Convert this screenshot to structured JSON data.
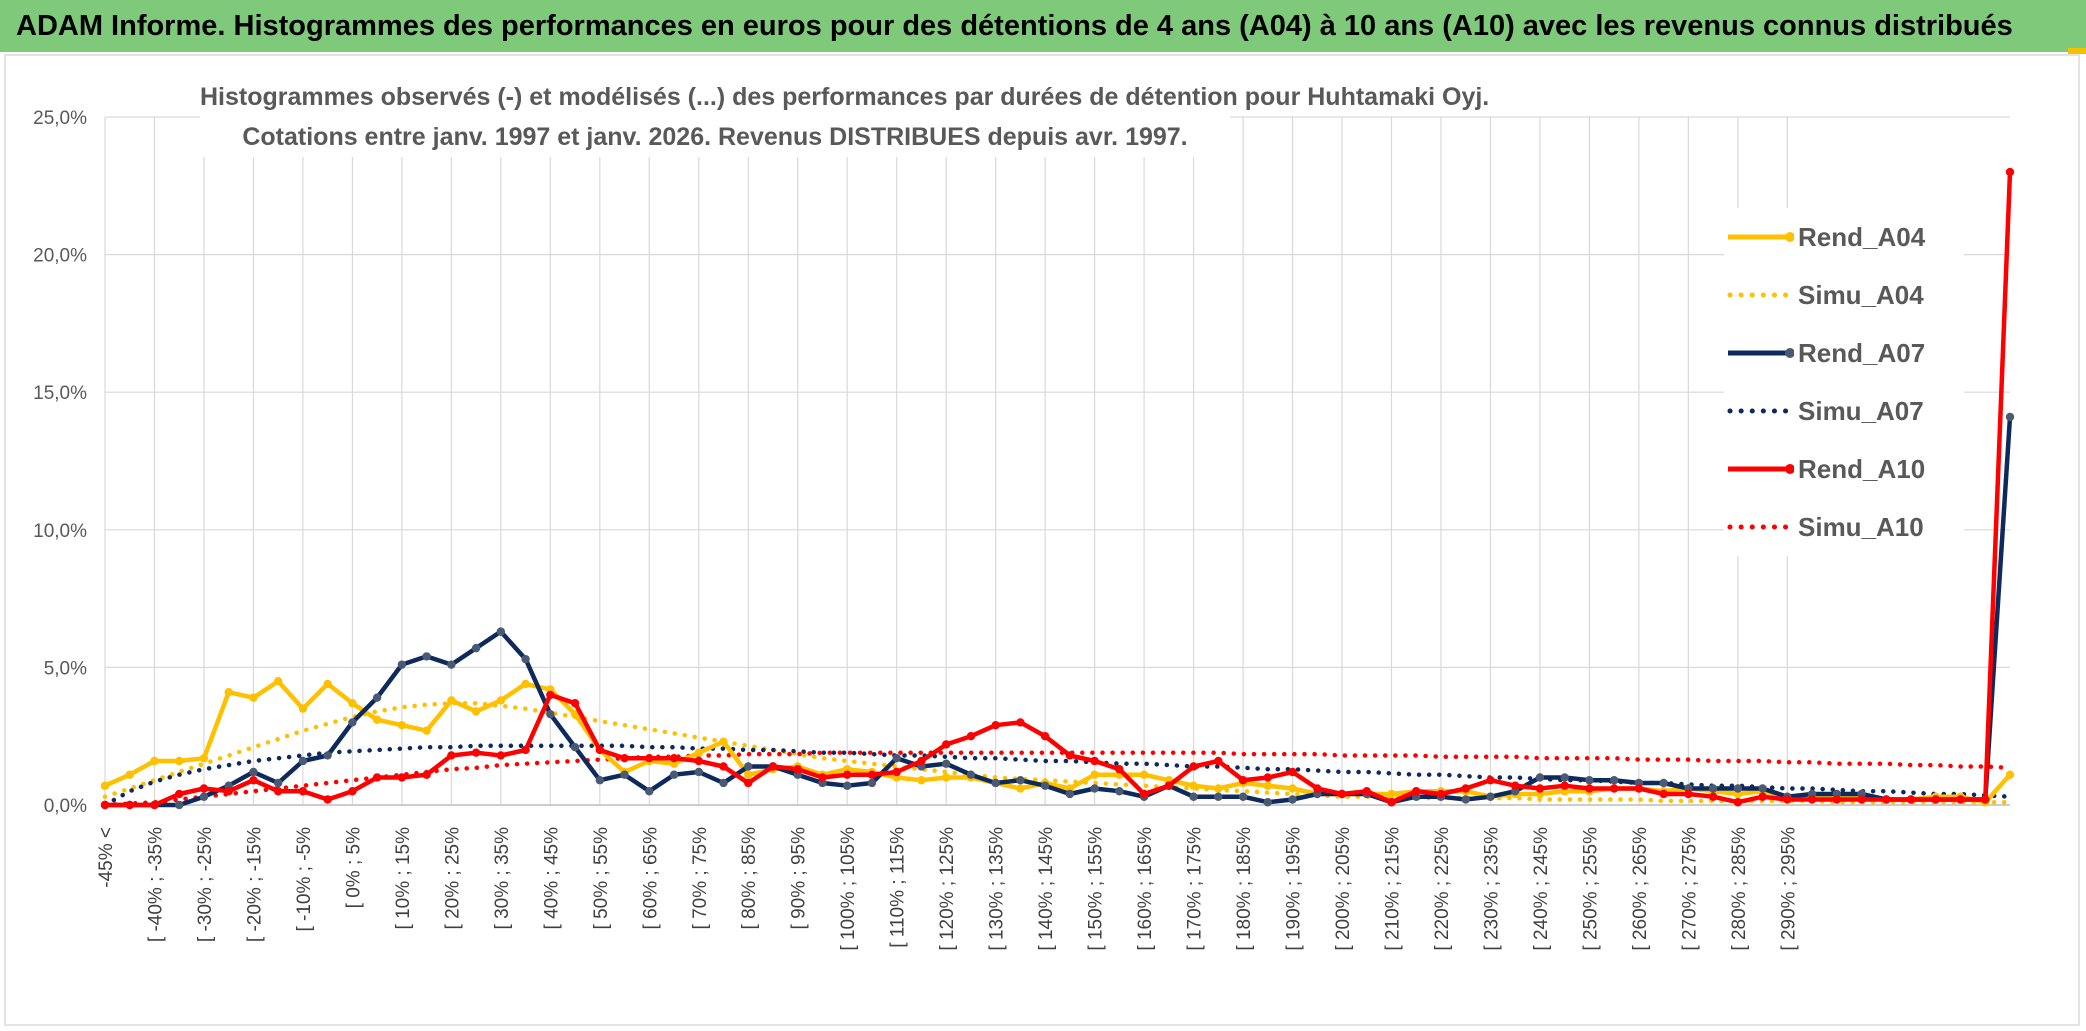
{
  "banner": {
    "title": "ADAM Informe. Histogrammes des performances en euros pour des détentions de 4 ans (A04) à 10 ans (A10) avec les revenus connus distribués"
  },
  "chart_data": {
    "type": "line",
    "title_line1": "Histogrammes observés (-) et modélisés (...) des performances par durées de détention pour Huhtamaki Oyj.",
    "title_line2": "Cotations entre janv. 1997 et janv. 2026. Revenus DISTRIBUES depuis avr. 1997.",
    "ylim": [
      0,
      25
    ],
    "y_ticks": [
      "0,0%",
      "5,0%",
      "10,0%",
      "15,0%",
      "20,0%",
      "25,0%"
    ],
    "y_tick_values": [
      0,
      5,
      10,
      15,
      20,
      25
    ],
    "grid": true,
    "legend_position": "right",
    "x_tick_labels": [
      "-45% <",
      "[ -40% ; -35%",
      "[ -30% ; -25%",
      "[ -20% ; -15%",
      "[ -10% ; -5%",
      "[ 0% ; 5%",
      "[ 10% ; 15%",
      "[ 20% ; 25%",
      "[ 30% ; 35%",
      "[ 40% ; 45%",
      "[ 50% ; 55%",
      "[ 60% ; 65%",
      "[ 70% ; 75%",
      "[ 80% ; 85%",
      "[ 90% ; 95%",
      "[ 100% ; 105%",
      "[ 110% ; 115%",
      "[ 120% ; 125%",
      "[ 130% ; 135%",
      "[ 140% ; 145%",
      "[ 150% ; 155%",
      "[ 160% ; 165%",
      "[ 170% ; 175%",
      "[ 180% ; 185%",
      "[ 190% ; 195%",
      "[ 200% ; 205%",
      "[ 210% ; 215%",
      "[ 220% ; 225%",
      "[ 230% ; 235%",
      "[ 240% ; 245%",
      "[ 250% ; 255%",
      "[ 260% ; 265%",
      "[ 270% ; 275%",
      "[ 280% ; 285%",
      "[ 290% ; 295%"
    ],
    "series": [
      {
        "name": "Rend_A04",
        "color": "#FFC000",
        "style": "solid",
        "marker": true,
        "values": [
          0.7,
          1.1,
          1.6,
          1.6,
          1.7,
          4.1,
          3.9,
          4.5,
          3.5,
          4.4,
          3.7,
          3.1,
          2.9,
          2.7,
          3.8,
          3.4,
          3.8,
          4.4,
          4.2,
          3.3,
          2.0,
          1.2,
          1.6,
          1.5,
          1.9,
          2.3,
          1.1,
          1.3,
          1.4,
          1.1,
          1.3,
          1.2,
          1.0,
          0.9,
          1.0,
          1.0,
          0.8,
          0.6,
          0.8,
          0.6,
          1.1,
          1.1,
          1.1,
          0.9,
          0.7,
          0.6,
          0.8,
          0.7,
          0.6,
          0.4,
          0.4,
          0.4,
          0.4,
          0.5,
          0.5,
          0.5,
          0.3,
          0.4,
          0.4,
          0.5,
          0.5,
          0.6,
          0.6,
          0.5,
          0.6,
          0.5,
          0.4,
          0.5,
          0.3,
          0.3,
          0.3,
          0.3,
          0.2,
          0.2,
          0.3,
          0.3,
          0.1,
          1.1
        ]
      },
      {
        "name": "Simu_A04",
        "color": "#FFC000",
        "style": "dotted",
        "marker": false,
        "values": [
          0.3,
          0.6,
          0.9,
          1.2,
          1.5,
          1.8,
          2.1,
          2.4,
          2.7,
          2.95,
          3.2,
          3.4,
          3.55,
          3.65,
          3.7,
          3.7,
          3.6,
          3.5,
          3.35,
          3.2,
          3.05,
          2.9,
          2.75,
          2.6,
          2.45,
          2.3,
          2.15,
          2.0,
          1.85,
          1.7,
          1.6,
          1.5,
          1.4,
          1.3,
          1.2,
          1.1,
          1.0,
          0.95,
          0.9,
          0.85,
          0.8,
          0.75,
          0.7,
          0.65,
          0.6,
          0.55,
          0.5,
          0.45,
          0.4,
          0.35,
          0.3,
          0.3,
          0.3,
          0.25,
          0.25,
          0.25,
          0.25,
          0.25,
          0.2,
          0.2,
          0.2,
          0.2,
          0.2,
          0.15,
          0.15,
          0.15,
          0.15,
          0.15,
          0.15,
          0.15,
          0.1,
          0.1,
          0.1,
          0.1,
          0.1,
          0.1,
          0.1,
          0.1
        ]
      },
      {
        "name": "Rend_A07",
        "color": "#0E2A5C",
        "style": "solid",
        "marker": true,
        "values": [
          0,
          0,
          0,
          0,
          0.3,
          0.7,
          1.2,
          0.8,
          1.6,
          1.8,
          3.0,
          3.9,
          5.1,
          5.4,
          5.1,
          5.7,
          6.3,
          5.3,
          3.3,
          2.1,
          0.9,
          1.1,
          0.5,
          1.1,
          1.2,
          0.8,
          1.4,
          1.4,
          1.1,
          0.8,
          0.7,
          0.8,
          1.7,
          1.4,
          1.5,
          1.1,
          0.8,
          0.9,
          0.7,
          0.4,
          0.6,
          0.5,
          0.3,
          0.7,
          0.3,
          0.3,
          0.3,
          0.1,
          0.2,
          0.4,
          0.4,
          0.4,
          0.1,
          0.3,
          0.3,
          0.2,
          0.3,
          0.5,
          1.0,
          1.0,
          0.9,
          0.9,
          0.8,
          0.8,
          0.6,
          0.6,
          0.6,
          0.6,
          0.3,
          0.4,
          0.4,
          0.4,
          0.2,
          0.2,
          0.2,
          0.2,
          0.2,
          14.1
        ]
      },
      {
        "name": "Simu_A07",
        "color": "#0E2A5C",
        "style": "dotted",
        "marker": false,
        "values": [
          0,
          0.5,
          0.85,
          1.1,
          1.3,
          1.45,
          1.6,
          1.7,
          1.8,
          1.9,
          1.95,
          2.0,
          2.05,
          2.1,
          2.1,
          2.15,
          2.15,
          2.15,
          2.15,
          2.15,
          2.15,
          2.15,
          2.1,
          2.1,
          2.05,
          2.05,
          2.0,
          2.0,
          1.95,
          1.9,
          1.9,
          1.85,
          1.8,
          1.8,
          1.75,
          1.7,
          1.7,
          1.65,
          1.6,
          1.6,
          1.55,
          1.5,
          1.5,
          1.45,
          1.4,
          1.4,
          1.35,
          1.3,
          1.3,
          1.25,
          1.2,
          1.2,
          1.15,
          1.1,
          1.1,
          1.05,
          1.0,
          1.0,
          0.95,
          0.9,
          0.9,
          0.85,
          0.8,
          0.8,
          0.75,
          0.7,
          0.7,
          0.65,
          0.6,
          0.6,
          0.55,
          0.5,
          0.5,
          0.45,
          0.4,
          0.4,
          0.35,
          0.3
        ]
      },
      {
        "name": "Rend_A10",
        "color": "#FF0000",
        "style": "solid",
        "marker": true,
        "values": [
          0,
          0,
          0,
          0.4,
          0.6,
          0.5,
          0.9,
          0.5,
          0.5,
          0.2,
          0.5,
          1.0,
          1.0,
          1.1,
          1.8,
          1.9,
          1.8,
          2.0,
          4.0,
          3.7,
          2.0,
          1.7,
          1.7,
          1.7,
          1.6,
          1.4,
          0.8,
          1.4,
          1.3,
          1.0,
          1.1,
          1.1,
          1.2,
          1.6,
          2.2,
          2.5,
          2.9,
          3.0,
          2.5,
          1.8,
          1.6,
          1.3,
          0.4,
          0.7,
          1.4,
          1.6,
          0.9,
          1.0,
          1.2,
          0.6,
          0.4,
          0.5,
          0.1,
          0.5,
          0.4,
          0.6,
          0.9,
          0.7,
          0.6,
          0.7,
          0.6,
          0.6,
          0.6,
          0.4,
          0.4,
          0.3,
          0.1,
          0.3,
          0.2,
          0.2,
          0.2,
          0.2,
          0.2,
          0.2,
          0.2,
          0.2,
          0.2,
          23.0
        ]
      },
      {
        "name": "Simu_A10",
        "color": "#FF0000",
        "style": "dotted",
        "marker": false,
        "values": [
          0,
          0.05,
          0.1,
          0.2,
          0.3,
          0.4,
          0.5,
          0.6,
          0.7,
          0.8,
          0.9,
          1.0,
          1.1,
          1.2,
          1.3,
          1.35,
          1.45,
          1.5,
          1.55,
          1.6,
          1.65,
          1.7,
          1.75,
          1.75,
          1.8,
          1.8,
          1.85,
          1.85,
          1.85,
          1.9,
          1.9,
          1.9,
          1.9,
          1.9,
          1.9,
          1.9,
          1.9,
          1.9,
          1.9,
          1.9,
          1.9,
          1.9,
          1.9,
          1.9,
          1.9,
          1.9,
          1.85,
          1.85,
          1.85,
          1.85,
          1.8,
          1.8,
          1.8,
          1.8,
          1.75,
          1.75,
          1.75,
          1.75,
          1.7,
          1.7,
          1.7,
          1.7,
          1.65,
          1.65,
          1.65,
          1.6,
          1.6,
          1.6,
          1.55,
          1.55,
          1.5,
          1.5,
          1.5,
          1.45,
          1.45,
          1.4,
          1.4,
          1.35
        ]
      }
    ]
  }
}
